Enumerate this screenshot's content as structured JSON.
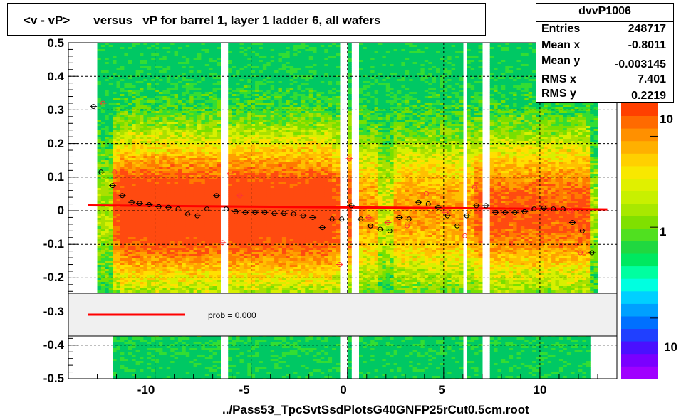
{
  "title": "<v - vP>       versus   vP for barrel 1, layer 1 ladder 6, all wafers",
  "stats": {
    "name": "dvvP1006",
    "rows": [
      {
        "label": "Entries",
        "value": "248717"
      },
      {
        "label": "Mean x",
        "value": "-0.8011"
      },
      {
        "label": "Mean y",
        "value": "-0.003145"
      },
      {
        "label": "RMS x",
        "value": "7.401"
      },
      {
        "label": "RMS y",
        "value": "0.2219"
      }
    ]
  },
  "legend": {
    "fit_label": "prob = 0.000",
    "fit_color": "#ff0000"
  },
  "x_title": "../Pass53_TpcSvtSsdPlotsG40GNFP25rCut0.5cm.root",
  "y_tick_labels": [
    "0.5",
    "0.4",
    "0.3",
    "0.2",
    "0.1",
    "0",
    "-0.1",
    "-0.2",
    "-0.3",
    "-0.4",
    "-0.5"
  ],
  "x_tick_labels": [
    "-10",
    "-5",
    "0",
    "5",
    "10"
  ],
  "z_tick_labels": [
    "10",
    "1",
    "10"
  ],
  "chart_data": {
    "type": "heatmap",
    "title": "<v - vP>       versus   vP for barrel 1, layer 1 ladder 6, all wafers",
    "xlabel": "../Pass53_TpcSvtSsdPlotsG40GNFP25rCut0.5cm.root",
    "ylabel": "",
    "xlim": [
      -14.5,
      14
    ],
    "ylim": [
      -0.5,
      0.5
    ],
    "z_scale": "log",
    "grid": true,
    "colors": {
      "fit_line": "#ff0000",
      "points_red": "#ff3333",
      "points_black": "#000000"
    },
    "fit_line": {
      "x": [
        -13.5,
        13.5
      ],
      "y": [
        0.016,
        0.004
      ]
    },
    "profile_black": {
      "x": [
        -13.2,
        -12.8,
        -12.2,
        -11.7,
        -11.2,
        -10.8,
        -10.3,
        -9.8,
        -9.3,
        -8.8,
        -8.3,
        -7.8,
        -7.3,
        -6.8,
        -6.3,
        -5.8,
        -5.3,
        -4.8,
        -4.3,
        -3.8,
        -3.3,
        -2.8,
        -2.3,
        -1.8,
        -1.3,
        -0.8,
        -0.3,
        0.2,
        0.7,
        1.2,
        1.7,
        2.2,
        2.7,
        3.2,
        3.7,
        4.2,
        4.7,
        5.2,
        5.7,
        6.2,
        6.7,
        7.2,
        7.7,
        8.2,
        8.7,
        9.2,
        9.7,
        10.2,
        10.7,
        11.2,
        11.7,
        12.2,
        12.7
      ],
      "y": [
        0.31,
        0.115,
        0.075,
        0.045,
        0.025,
        0.022,
        0.018,
        0.012,
        0.01,
        0.005,
        -0.01,
        -0.015,
        0.005,
        0.045,
        0.005,
        -0.003,
        -0.005,
        -0.005,
        -0.005,
        -0.008,
        -0.008,
        -0.01,
        -0.015,
        -0.02,
        -0.05,
        -0.025,
        -0.025,
        0.015,
        -0.025,
        -0.045,
        -0.055,
        -0.06,
        -0.02,
        -0.025,
        0.025,
        0.02,
        0.01,
        -0.015,
        -0.045,
        -0.015,
        0.015,
        0.015,
        -0.005,
        -0.005,
        -0.005,
        -0.003,
        0.005,
        0.008,
        0.005,
        0.005,
        -0.035,
        -0.06,
        -0.125
      ]
    },
    "profile_red": {
      "x": [
        -12.7,
        -12.1,
        -6.5,
        -6.1,
        -5.6,
        -0.4,
        0.1,
        1.1,
        2.1,
        3.1,
        4.1,
        5.1,
        6.1,
        6.6,
        9.6,
        11.6,
        12.1
      ],
      "y": [
        0.32,
        0.115,
        -0.095,
        0.11,
        0.045,
        -0.16,
        0.155,
        -0.02,
        -0.035,
        -0.045,
        0.05,
        -0.005,
        -0.075,
        0.07,
        0.005,
        0.0,
        -0.125
      ]
    }
  }
}
